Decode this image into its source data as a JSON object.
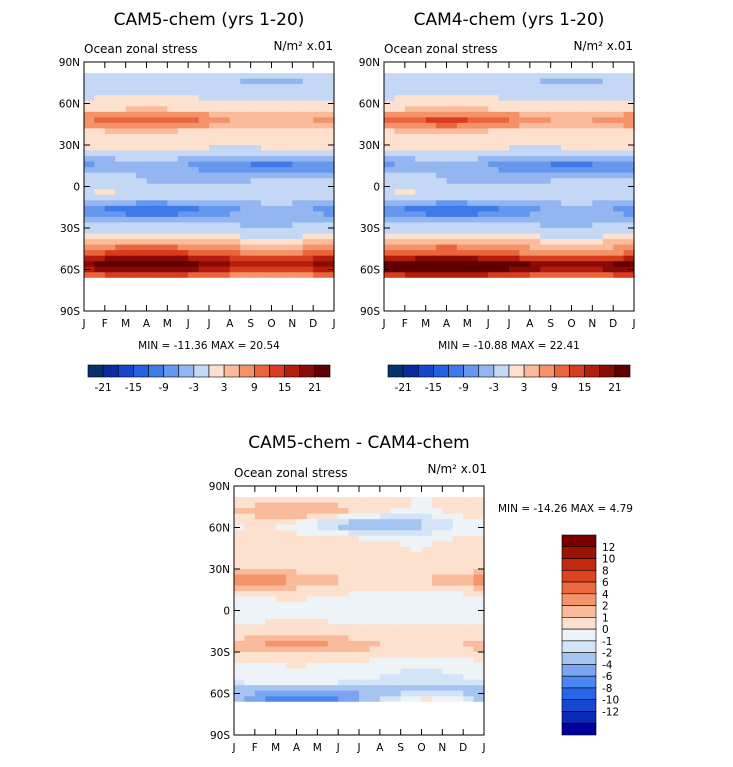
{
  "figure": "CAM5-chem vs CAM4-chem ocean zonal stress",
  "chart_data": [
    {
      "type": "heatmap",
      "title": "CAM5-chem (yrs 1-20)",
      "subtitle_left": "Ocean zonal stress",
      "subtitle_right": "N/m² x.01",
      "y_ticks": [
        "90N",
        "60N",
        "30N",
        "0",
        "30S",
        "60S",
        "90S"
      ],
      "x_ticks": [
        "J",
        "F",
        "M",
        "A",
        "M",
        "J",
        "J",
        "A",
        "S",
        "O",
        "N",
        "D",
        "J"
      ],
      "stats": "MIN = -11.36 MAX =  20.54",
      "colorbar_labels": [
        "-21",
        "-15",
        "-9",
        "-3",
        "3",
        "9",
        "15",
        "21"
      ],
      "ylim": [
        -90,
        90
      ],
      "bands": [
        {
          "lat": 77,
          "v": -2,
          "amp": 1.5,
          "phase": 0
        },
        {
          "lat": 48,
          "v": 8,
          "amp": 3.5,
          "phase": 0
        },
        {
          "lat": 30,
          "v": 1,
          "amp": 1,
          "phase": 1
        },
        {
          "lat": 15,
          "v": -7,
          "amp": 2.5,
          "phase": 0
        },
        {
          "lat": 3,
          "v": -2,
          "amp": 1.5,
          "phase": 2
        },
        {
          "lat": -7,
          "v": 0.5,
          "amp": 0.8,
          "phase": 0
        },
        {
          "lat": -17,
          "v": -8,
          "amp": 3.5,
          "phase": 3
        },
        {
          "lat": -30,
          "v": -2,
          "amp": 1,
          "phase": 0
        },
        {
          "lat": -44,
          "v": 6,
          "amp": 2,
          "phase": 0
        },
        {
          "lat": -55,
          "v": 17,
          "amp": 3,
          "phase": 0
        },
        {
          "lat": -63,
          "v": 8,
          "amp": 2,
          "phase": 0
        },
        {
          "lat": -70,
          "v": -1,
          "amp": 1,
          "phase": 0
        }
      ],
      "mask_north": 80,
      "mask_south": -66
    },
    {
      "type": "heatmap",
      "title": "CAM4-chem (yrs 1-20)",
      "subtitle_left": "Ocean zonal stress",
      "subtitle_right": "N/m² x.01",
      "y_ticks": [
        "90N",
        "60N",
        "30N",
        "0",
        "30S",
        "60S",
        "90S"
      ],
      "x_ticks": [
        "J",
        "F",
        "M",
        "A",
        "M",
        "J",
        "J",
        "A",
        "S",
        "O",
        "N",
        "D",
        "J"
      ],
      "stats": "MIN = -10.88 MAX =  22.41",
      "colorbar_labels": [
        "-21",
        "-15",
        "-9",
        "-3",
        "3",
        "9",
        "15",
        "21"
      ],
      "ylim": [
        -90,
        90
      ],
      "bands": [
        {
          "lat": 77,
          "v": -2,
          "amp": 1.5,
          "phase": 0
        },
        {
          "lat": 48,
          "v": 9,
          "amp": 3.5,
          "phase": 0
        },
        {
          "lat": 30,
          "v": 1,
          "amp": 1,
          "phase": 1
        },
        {
          "lat": 15,
          "v": -7,
          "amp": 2.5,
          "phase": 0
        },
        {
          "lat": 3,
          "v": -2,
          "amp": 1.5,
          "phase": 2
        },
        {
          "lat": -7,
          "v": 0.5,
          "amp": 0.8,
          "phase": 0
        },
        {
          "lat": -17,
          "v": -8,
          "amp": 3.5,
          "phase": 3
        },
        {
          "lat": -30,
          "v": -2,
          "amp": 1,
          "phase": 0
        },
        {
          "lat": -44,
          "v": 6,
          "amp": 2,
          "phase": 0
        },
        {
          "lat": -56,
          "v": 19,
          "amp": 3,
          "phase": 0
        },
        {
          "lat": -63,
          "v": 9,
          "amp": 2,
          "phase": 0
        },
        {
          "lat": -70,
          "v": -1,
          "amp": 1,
          "phase": 0
        }
      ],
      "mask_north": 80,
      "mask_south": -66
    },
    {
      "type": "heatmap",
      "title": "CAM5-chem - CAM4-chem",
      "subtitle_left": "Ocean zonal stress",
      "subtitle_right": "N/m² x.01",
      "y_ticks": [
        "90N",
        "60N",
        "30N",
        "0",
        "30S",
        "60S",
        "90S"
      ],
      "x_ticks": [
        "J",
        "F",
        "M",
        "A",
        "M",
        "J",
        "J",
        "A",
        "S",
        "O",
        "N",
        "D",
        "J"
      ],
      "stats": "MIN = -14.26 MAX =   4.79",
      "colorbar_labels": [
        "12",
        "10",
        "8",
        "6",
        "4",
        "2",
        "1",
        "0",
        "-1",
        "-2",
        "-4",
        "-6",
        "-8",
        "-10",
        "-12"
      ],
      "ylim": [
        -90,
        90
      ],
      "bands": [
        {
          "lat": 72,
          "v": 1,
          "amp": 1,
          "phase": 0
        },
        {
          "lat": 62,
          "v": -1.5,
          "amp": 1.5,
          "phase": 1
        },
        {
          "lat": 48,
          "v": 0.5,
          "amp": 0.5,
          "phase": 0
        },
        {
          "lat": 22,
          "v": 1.5,
          "amp": 1,
          "phase": 1
        },
        {
          "lat": 5,
          "v": -0.5,
          "amp": 0.5,
          "phase": 0
        },
        {
          "lat": -25,
          "v": 1.5,
          "amp": 0.8,
          "phase": 0
        },
        {
          "lat": -45,
          "v": -0.5,
          "amp": 0.5,
          "phase": 0
        },
        {
          "lat": -57,
          "v": -1.5,
          "amp": 1,
          "phase": 0
        },
        {
          "lat": -64,
          "v": -3,
          "amp": 4,
          "phase": 3
        }
      ],
      "mask_north": 80,
      "mask_south": -67
    }
  ],
  "colors": {
    "seq": [
      "#08306b",
      "#0a2a9e",
      "#1546cc",
      "#2461e0",
      "#3d7be8",
      "#6597ee",
      "#93b6f0",
      "#c4d8f5",
      "#fde1cf",
      "#f9bb9b",
      "#f4936a",
      "#e9653d",
      "#d73c1e",
      "#b41c0c",
      "#8a0b06",
      "#600000"
    ],
    "diff": [
      "#00009a",
      "#0a2ab8",
      "#1748d4",
      "#2866e8",
      "#4c86f0",
      "#7aa5f0",
      "#a6c4f2",
      "#d4e4f7",
      "#eef3f8",
      "#fde1cf",
      "#fabb9c",
      "#f5946a",
      "#ec6a40",
      "#dd4320",
      "#c02a10",
      "#9a1406",
      "#7a0000"
    ]
  }
}
